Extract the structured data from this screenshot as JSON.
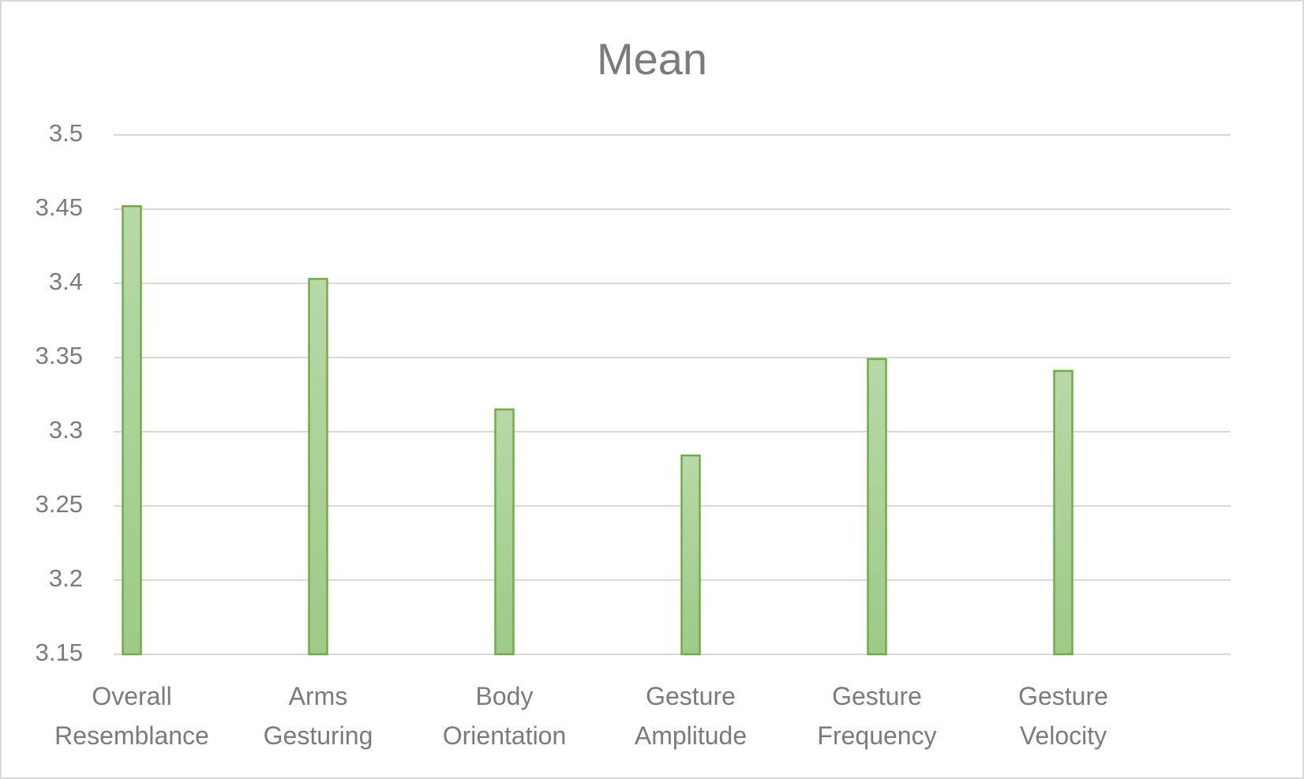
{
  "chart_data": {
    "type": "bar",
    "title": "Mean",
    "categories": [
      "Overall Resemblance",
      "Arms Gesturing",
      "Body Orientation",
      "Gesture Amplitude",
      "Gesture Frequency",
      "Gesture Velocity"
    ],
    "values": [
      3.452,
      3.403,
      3.315,
      3.284,
      3.349,
      3.341
    ],
    "color": "#70ad47",
    "ylim": [
      3.15,
      3.5
    ],
    "yticks": [
      3.15,
      3.2,
      3.25,
      3.3,
      3.35,
      3.4,
      3.45,
      3.5
    ],
    "grid": true
  }
}
